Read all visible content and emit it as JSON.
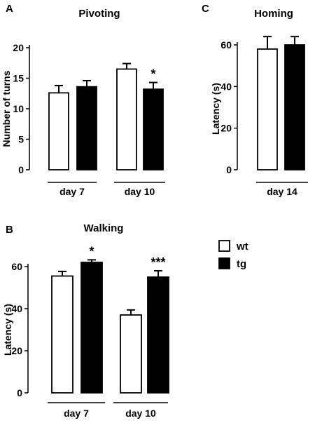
{
  "colors": {
    "wt": "#ffffff",
    "tg": "#000000",
    "stroke": "#000000"
  },
  "legend": [
    {
      "key": "wt",
      "label": "wt"
    },
    {
      "key": "tg",
      "label": "tg"
    }
  ],
  "chart_data": [
    {
      "id": "A",
      "panel_letter": "A",
      "type": "bar",
      "title": "Pivoting",
      "ylabel": "Number of turns",
      "ylim": [
        0,
        20
      ],
      "yticks": [
        0,
        5,
        10,
        15,
        20
      ],
      "categories": [
        "day 7",
        "day 10"
      ],
      "series": [
        {
          "name": "wt",
          "values": [
            12.6,
            16.5
          ],
          "errors": [
            1.2,
            0.9
          ]
        },
        {
          "name": "tg",
          "values": [
            13.6,
            13.2
          ],
          "errors": [
            1.0,
            1.1
          ]
        }
      ],
      "annotations": [
        {
          "category": "day 10",
          "series": "tg",
          "text": "*"
        }
      ]
    },
    {
      "id": "B",
      "panel_letter": "B",
      "type": "bar",
      "title": "Walking",
      "ylabel": "Latency (s)",
      "ylim": [
        0,
        60
      ],
      "yticks": [
        0,
        20,
        40,
        60
      ],
      "categories": [
        "day 7",
        "day 10"
      ],
      "series": [
        {
          "name": "wt",
          "values": [
            55.5,
            37.0
          ],
          "errors": [
            2.2,
            2.4
          ]
        },
        {
          "name": "tg",
          "values": [
            62.0,
            55.0
          ],
          "errors": [
            1.2,
            3.0
          ]
        }
      ],
      "annotations": [
        {
          "category": "day 7",
          "series": "tg",
          "text": "*"
        },
        {
          "category": "day 10",
          "series": "tg",
          "text": "***"
        }
      ]
    },
    {
      "id": "C",
      "panel_letter": "C",
      "type": "bar",
      "title": "Homing",
      "ylabel": "Latency (s)",
      "ylim": [
        0,
        60
      ],
      "yticks": [
        0,
        20,
        40,
        60
      ],
      "categories": [
        "day 14"
      ],
      "series": [
        {
          "name": "wt",
          "values": [
            58.0
          ],
          "errors": [
            6.0
          ]
        },
        {
          "name": "tg",
          "values": [
            60.0
          ],
          "errors": [
            4.0
          ]
        }
      ],
      "annotations": []
    }
  ]
}
